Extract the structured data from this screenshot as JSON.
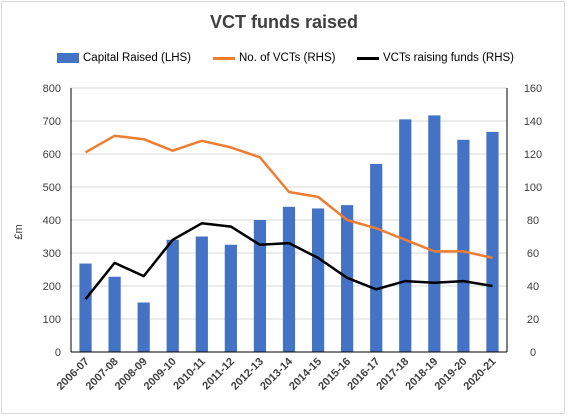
{
  "chart_data": {
    "type": "bar",
    "title": "VCT funds raised",
    "ylabel": "£m",
    "xlabel": "",
    "ylim": [
      0,
      800
    ],
    "y2lim": [
      0,
      160
    ],
    "yticks": [
      0,
      100,
      200,
      300,
      400,
      500,
      600,
      700,
      800
    ],
    "y2ticks": [
      0,
      20,
      40,
      60,
      80,
      100,
      120,
      140,
      160
    ],
    "grid": true,
    "legend_position": "top",
    "categories": [
      "2006-07",
      "2007-08",
      "2008-09",
      "2009-10",
      "2010-11",
      "2011-12",
      "2012-13",
      "2013-14",
      "2014-15",
      "2015-16",
      "2016-17",
      "2017-18",
      "2018-19",
      "2019-20",
      "2020-21"
    ],
    "series": [
      {
        "name": "Capital Raised (LHS)",
        "type": "bar",
        "axis": "left",
        "color": "#4472c4",
        "values": [
          268,
          228,
          150,
          340,
          350,
          325,
          400,
          440,
          435,
          445,
          570,
          705,
          717,
          643,
          667
        ]
      },
      {
        "name": "No. of VCTs (RHS)",
        "type": "line",
        "axis": "right",
        "color": "#ed7d31",
        "values": [
          121,
          131,
          129,
          122,
          128,
          124,
          118,
          97,
          94,
          80,
          75,
          68,
          61,
          61,
          57
        ]
      },
      {
        "name": "VCTs raising funds (RHS)",
        "type": "line",
        "axis": "right",
        "color": "#000000",
        "values": [
          32,
          54,
          46,
          68,
          78,
          76,
          65,
          66,
          57,
          45,
          38,
          43,
          42,
          43,
          40
        ]
      }
    ]
  }
}
